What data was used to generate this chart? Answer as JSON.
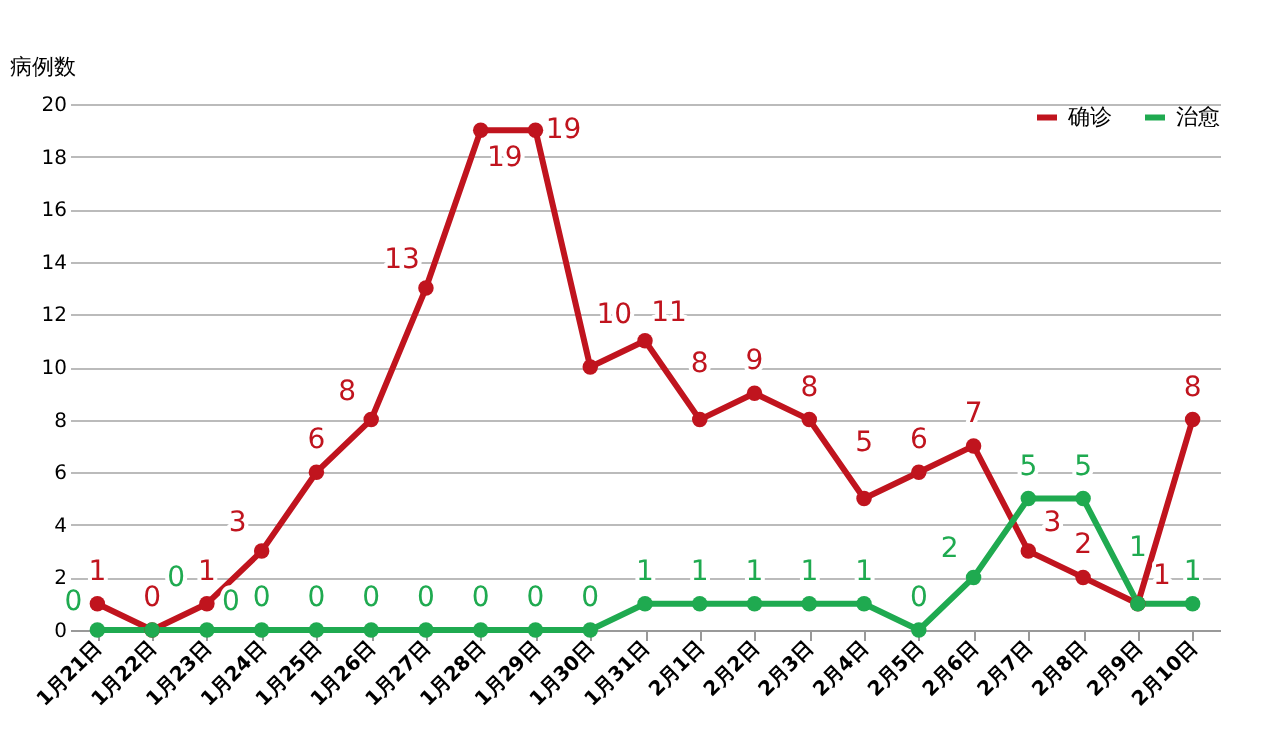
{
  "chart_data": {
    "type": "line",
    "ylabel": "病例数",
    "categories": [
      "1月21日",
      "1月22日",
      "1月23日",
      "1月24日",
      "1月25日",
      "1月26日",
      "1月27日",
      "1月28日",
      "1月29日",
      "1月30日",
      "1月31日",
      "2月1日",
      "2月2日",
      "2月3日",
      "2月4日",
      "2月5日",
      "2月6日",
      "2月7日",
      "2月8日",
      "2月9日",
      "2月10日"
    ],
    "series": [
      {
        "name": "确诊",
        "color": "#c0141e",
        "values": [
          1,
          0,
          1,
          3,
          6,
          8,
          13,
          19,
          19,
          10,
          11,
          8,
          9,
          8,
          5,
          6,
          7,
          3,
          2,
          1,
          8
        ]
      },
      {
        "name": "治愈",
        "color": "#1faa50",
        "values": [
          0,
          0,
          0,
          0,
          0,
          0,
          0,
          0,
          0,
          0,
          1,
          1,
          1,
          1,
          1,
          0,
          2,
          5,
          5,
          1,
          1
        ]
      }
    ],
    "ylim": [
      0,
      20
    ],
    "yticks": [
      0,
      2,
      4,
      6,
      8,
      10,
      12,
      14,
      16,
      18,
      20
    ],
    "grid": "y",
    "legend": "top right",
    "marker": "circle",
    "line_style": "solid",
    "data_labels": true
  }
}
